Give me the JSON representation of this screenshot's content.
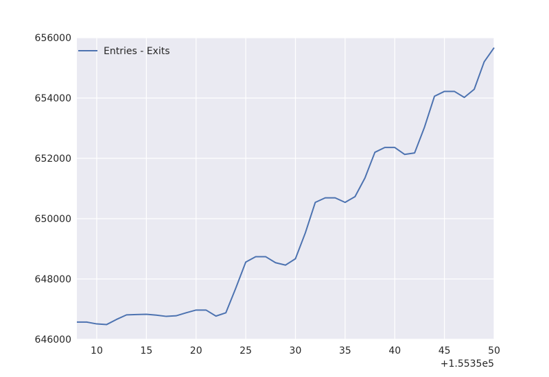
{
  "chart_data": {
    "type": "line",
    "title": "",
    "xlabel": "",
    "ylabel": "",
    "x_offset_label": "+1.5535e5",
    "xlim": [
      8,
      50
    ],
    "ylim": [
      646000,
      656000
    ],
    "x_ticks": [
      10,
      15,
      20,
      25,
      30,
      35,
      40,
      45,
      50
    ],
    "y_ticks": [
      646000,
      648000,
      650000,
      652000,
      654000,
      656000
    ],
    "grid": true,
    "legend": {
      "position": "top-left"
    },
    "series": [
      {
        "name": "Entries - Exits",
        "color": "#4c72b0",
        "x": [
          8,
          9,
          10,
          11,
          12,
          13,
          14,
          15,
          16,
          17,
          18,
          19,
          20,
          21,
          22,
          23,
          24,
          25,
          26,
          27,
          28,
          29,
          30,
          31,
          32,
          33,
          34,
          35,
          36,
          37,
          38,
          39,
          40,
          41,
          42,
          43,
          44,
          45,
          46,
          47,
          48,
          49,
          50
        ],
        "y": [
          646570,
          646570,
          646510,
          646490,
          646660,
          646810,
          646820,
          646830,
          646800,
          646760,
          646780,
          646880,
          646970,
          646970,
          646770,
          646880,
          647700,
          648560,
          648740,
          648740,
          648540,
          648460,
          648670,
          649530,
          650540,
          650690,
          650690,
          650540,
          650730,
          651350,
          652200,
          652360,
          652360,
          652130,
          652180,
          653040,
          654060,
          654220,
          654220,
          654020,
          654290,
          655200,
          655670
        ]
      }
    ]
  }
}
